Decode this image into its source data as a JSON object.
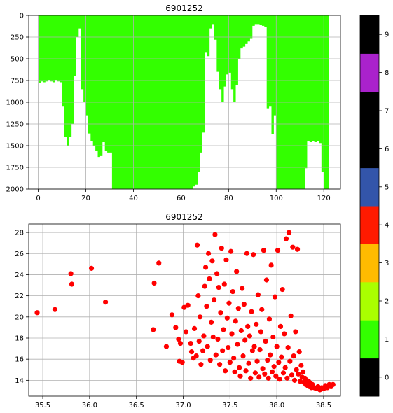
{
  "chart_data": [
    {
      "type": "area",
      "title": "6901252",
      "xlim": [
        -4,
        127
      ],
      "ylim": [
        2000,
        0
      ],
      "xticks": [
        0,
        20,
        40,
        60,
        80,
        100,
        120
      ],
      "yticks": [
        0,
        250,
        500,
        750,
        1000,
        1250,
        1500,
        1750,
        2000
      ],
      "grid": true,
      "fill_color": "#33ff00",
      "profile_depths": [
        {
          "x": 0,
          "depth": 780
        },
        {
          "x": 1,
          "depth": 760
        },
        {
          "x": 2,
          "depth": 770
        },
        {
          "x": 3,
          "depth": 760
        },
        {
          "x": 4,
          "depth": 750
        },
        {
          "x": 5,
          "depth": 760
        },
        {
          "x": 6,
          "depth": 770
        },
        {
          "x": 7,
          "depth": 750
        },
        {
          "x": 8,
          "depth": 760
        },
        {
          "x": 9,
          "depth": 770
        },
        {
          "x": 10,
          "depth": 1050
        },
        {
          "x": 11,
          "depth": 1400
        },
        {
          "x": 12,
          "depth": 1500
        },
        {
          "x": 13,
          "depth": 1400
        },
        {
          "x": 14,
          "depth": 1250
        },
        {
          "x": 15,
          "depth": 700
        },
        {
          "x": 16,
          "depth": 250
        },
        {
          "x": 17,
          "depth": 150
        },
        {
          "x": 18,
          "depth": 850
        },
        {
          "x": 19,
          "depth": 1000
        },
        {
          "x": 20,
          "depth": 1150
        },
        {
          "x": 21,
          "depth": 1360
        },
        {
          "x": 22,
          "depth": 1450
        },
        {
          "x": 23,
          "depth": 1500
        },
        {
          "x": 24,
          "depth": 1560
        },
        {
          "x": 25,
          "depth": 1630
        },
        {
          "x": 26,
          "depth": 1620
        },
        {
          "x": 27,
          "depth": 1460
        },
        {
          "x": 28,
          "depth": 1560
        },
        {
          "x": 29,
          "depth": 1580
        },
        {
          "x": 30,
          "depth": 1580
        },
        {
          "x": 31,
          "depth": 2000
        },
        {
          "x": 35,
          "depth": 2000
        },
        {
          "x": 40,
          "depth": 2000
        },
        {
          "x": 45,
          "depth": 2000
        },
        {
          "x": 50,
          "depth": 2000
        },
        {
          "x": 55,
          "depth": 2000
        },
        {
          "x": 60,
          "depth": 2000
        },
        {
          "x": 63,
          "depth": 2000
        },
        {
          "x": 65,
          "depth": 1970
        },
        {
          "x": 66,
          "depth": 1950
        },
        {
          "x": 67,
          "depth": 1800
        },
        {
          "x": 68,
          "depth": 1580
        },
        {
          "x": 69,
          "depth": 1350
        },
        {
          "x": 70,
          "depth": 430
        },
        {
          "x": 71,
          "depth": 470
        },
        {
          "x": 72,
          "depth": 150
        },
        {
          "x": 73,
          "depth": 100
        },
        {
          "x": 74,
          "depth": 280
        },
        {
          "x": 75,
          "depth": 650
        },
        {
          "x": 76,
          "depth": 850
        },
        {
          "x": 77,
          "depth": 1000
        },
        {
          "x": 78,
          "depth": 820
        },
        {
          "x": 79,
          "depth": 680
        },
        {
          "x": 80,
          "depth": 660
        },
        {
          "x": 81,
          "depth": 850
        },
        {
          "x": 82,
          "depth": 1000
        },
        {
          "x": 83,
          "depth": 800
        },
        {
          "x": 84,
          "depth": 500
        },
        {
          "x": 85,
          "depth": 380
        },
        {
          "x": 86,
          "depth": 360
        },
        {
          "x": 87,
          "depth": 330
        },
        {
          "x": 88,
          "depth": 300
        },
        {
          "x": 89,
          "depth": 270
        },
        {
          "x": 90,
          "depth": 120
        },
        {
          "x": 91,
          "depth": 100
        },
        {
          "x": 92,
          "depth": 100
        },
        {
          "x": 93,
          "depth": 110
        },
        {
          "x": 94,
          "depth": 120
        },
        {
          "x": 95,
          "depth": 130
        },
        {
          "x": 96,
          "depth": 1070
        },
        {
          "x": 97,
          "depth": 1050
        },
        {
          "x": 98,
          "depth": 1370
        },
        {
          "x": 99,
          "depth": 1150
        },
        {
          "x": 100,
          "depth": 2000
        },
        {
          "x": 105,
          "depth": 2000
        },
        {
          "x": 110,
          "depth": 2000
        },
        {
          "x": 111,
          "depth": 2000
        },
        {
          "x": 112,
          "depth": 1760
        },
        {
          "x": 113,
          "depth": 1450
        },
        {
          "x": 114,
          "depth": 1460
        },
        {
          "x": 115,
          "depth": 1450
        },
        {
          "x": 116,
          "depth": 1460
        },
        {
          "x": 117,
          "depth": 1450
        },
        {
          "x": 118,
          "depth": 1470
        },
        {
          "x": 119,
          "depth": 1800
        },
        {
          "x": 120,
          "depth": 2000
        },
        {
          "x": 121,
          "depth": 2000
        }
      ]
    },
    {
      "type": "scatter",
      "title": "6901252",
      "xlim": [
        35.35,
        38.68
      ],
      "ylim": [
        12.5,
        28.8
      ],
      "xticks": [
        "35.5",
        "36.0",
        "36.5",
        "37.0",
        "37.5",
        "38.0",
        "38.5"
      ],
      "yticks": [
        "14",
        "16",
        "18",
        "20",
        "22",
        "24",
        "26",
        "28"
      ],
      "grid": true,
      "marker_color": "#ff0000",
      "points": [
        [
          35.44,
          20.4
        ],
        [
          35.63,
          20.7
        ],
        [
          35.8,
          24.1
        ],
        [
          35.81,
          23.1
        ],
        [
          36.02,
          24.6
        ],
        [
          36.17,
          21.4
        ],
        [
          36.68,
          18.8
        ],
        [
          36.69,
          23.2
        ],
        [
          36.74,
          25.1
        ],
        [
          36.82,
          17.2
        ],
        [
          36.88,
          20.2
        ],
        [
          36.92,
          19.0
        ],
        [
          36.95,
          17.9
        ],
        [
          36.96,
          15.8
        ],
        [
          36.97,
          17.5
        ],
        [
          36.99,
          15.7
        ],
        [
          37.01,
          20.9
        ],
        [
          37.03,
          18.6
        ],
        [
          37.05,
          21.1
        ],
        [
          37.08,
          17.5
        ],
        [
          37.09,
          16.7
        ],
        [
          37.11,
          16.1
        ],
        [
          37.12,
          18.9
        ],
        [
          37.14,
          16.3
        ],
        [
          37.15,
          26.8
        ],
        [
          37.16,
          22.0
        ],
        [
          37.17,
          17.7
        ],
        [
          37.18,
          20.0
        ],
        [
          37.19,
          15.5
        ],
        [
          37.21,
          16.8
        ],
        [
          37.22,
          18.2
        ],
        [
          37.23,
          22.9
        ],
        [
          37.24,
          24.7
        ],
        [
          37.25,
          21.0
        ],
        [
          37.26,
          17.2
        ],
        [
          37.27,
          26.0
        ],
        [
          37.28,
          23.6
        ],
        [
          37.29,
          15.9
        ],
        [
          37.3,
          19.5
        ],
        [
          37.31,
          25.3
        ],
        [
          37.32,
          18.1
        ],
        [
          37.33,
          21.6
        ],
        [
          37.34,
          27.8
        ],
        [
          37.35,
          16.4
        ],
        [
          37.36,
          24.1
        ],
        [
          37.37,
          17.9
        ],
        [
          37.38,
          22.8
        ],
        [
          37.39,
          15.5
        ],
        [
          37.4,
          20.4
        ],
        [
          37.41,
          26.5
        ],
        [
          37.42,
          16.8
        ],
        [
          37.43,
          18.8
        ],
        [
          37.44,
          23.1
        ],
        [
          37.45,
          14.9
        ],
        [
          37.46,
          25.4
        ],
        [
          37.47,
          19.9
        ],
        [
          37.48,
          17.1
        ],
        [
          37.49,
          21.3
        ],
        [
          37.5,
          15.7
        ],
        [
          37.51,
          26.2
        ],
        [
          37.52,
          18.4
        ],
        [
          37.53,
          22.4
        ],
        [
          37.54,
          16.1
        ],
        [
          37.55,
          14.8
        ],
        [
          37.56,
          19.6
        ],
        [
          37.57,
          24.3
        ],
        [
          37.58,
          17.4
        ],
        [
          37.59,
          20.8
        ],
        [
          37.6,
          15.2
        ],
        [
          37.61,
          14.4
        ],
        [
          37.62,
          18.7
        ],
        [
          37.63,
          22.7
        ],
        [
          37.64,
          16.3
        ],
        [
          37.65,
          21.2
        ],
        [
          37.66,
          17.8
        ],
        [
          37.67,
          14.9
        ],
        [
          37.68,
          26.0
        ],
        [
          37.69,
          19.1
        ],
        [
          37.7,
          15.6
        ],
        [
          37.71,
          18.2
        ],
        [
          37.72,
          14.2
        ],
        [
          37.73,
          20.5
        ],
        [
          37.74,
          16.8
        ],
        [
          37.75,
          25.9
        ],
        [
          37.76,
          17.2
        ],
        [
          37.77,
          14.7
        ],
        [
          37.78,
          19.3
        ],
        [
          37.79,
          15.8
        ],
        [
          37.8,
          22.1
        ],
        [
          37.81,
          14.3
        ],
        [
          37.82,
          16.9
        ],
        [
          37.83,
          18.6
        ],
        [
          37.84,
          20.7
        ],
        [
          37.85,
          15.1
        ],
        [
          37.86,
          26.3
        ],
        [
          37.87,
          14.6
        ],
        [
          37.88,
          17.7
        ],
        [
          37.89,
          23.5
        ],
        [
          37.9,
          15.9
        ],
        [
          37.91,
          14.2
        ],
        [
          37.92,
          19.8
        ],
        [
          37.93,
          16.4
        ],
        [
          37.94,
          24.9
        ],
        [
          37.95,
          14.8
        ],
        [
          37.96,
          18.1
        ],
        [
          37.97,
          15.3
        ],
        [
          37.98,
          21.9
        ],
        [
          37.99,
          14.4
        ],
        [
          38.0,
          17.2
        ],
        [
          38.01,
          26.3
        ],
        [
          38.02,
          15.7
        ],
        [
          38.03,
          14.1
        ],
        [
          38.04,
          19.1
        ],
        [
          38.05,
          16.2
        ],
        [
          38.06,
          22.6
        ],
        [
          38.07,
          14.7
        ],
        [
          38.08,
          18.4
        ],
        [
          38.09,
          15.2
        ],
        [
          38.1,
          27.4
        ],
        [
          38.11,
          14.2
        ],
        [
          38.12,
          17.1
        ],
        [
          38.13,
          28.0
        ],
        [
          38.14,
          15.8
        ],
        [
          38.15,
          20.1
        ],
        [
          38.16,
          14.5
        ],
        [
          38.17,
          26.6
        ],
        [
          38.18,
          16.3
        ],
        [
          38.19,
          14.0
        ],
        [
          38.2,
          18.6
        ],
        [
          38.21,
          15.0
        ],
        [
          38.22,
          26.4
        ],
        [
          38.23,
          14.6
        ],
        [
          38.24,
          16.7
        ],
        [
          38.25,
          13.9
        ],
        [
          38.26,
          15.4
        ],
        [
          38.27,
          14.3
        ],
        [
          38.28,
          14.8
        ],
        [
          38.29,
          13.8
        ],
        [
          38.3,
          14.2
        ],
        [
          38.31,
          13.6
        ],
        [
          38.32,
          14.0
        ],
        [
          38.33,
          13.5
        ],
        [
          38.34,
          13.9
        ],
        [
          38.35,
          13.4
        ],
        [
          38.36,
          13.7
        ],
        [
          38.37,
          13.3
        ],
        [
          38.38,
          13.6
        ],
        [
          38.4,
          13.3
        ],
        [
          38.42,
          13.2
        ],
        [
          38.44,
          13.4
        ],
        [
          38.46,
          13.1
        ],
        [
          38.48,
          13.3
        ],
        [
          38.5,
          13.2
        ],
        [
          38.52,
          13.5
        ],
        [
          38.54,
          13.3
        ],
        [
          38.56,
          13.6
        ],
        [
          38.58,
          13.4
        ],
        [
          38.6,
          13.6
        ]
      ]
    }
  ],
  "colorbar": {
    "ticks": [
      "0",
      "1",
      "2",
      "3",
      "4",
      "5",
      "6",
      "7",
      "8",
      "9"
    ],
    "colors": [
      "#000000",
      "#33ff00",
      "#aaff00",
      "#ffbb00",
      "#ff1a00",
      "#3355aa",
      "#000000",
      "#000000",
      "#aa22cc",
      "#000000"
    ]
  }
}
